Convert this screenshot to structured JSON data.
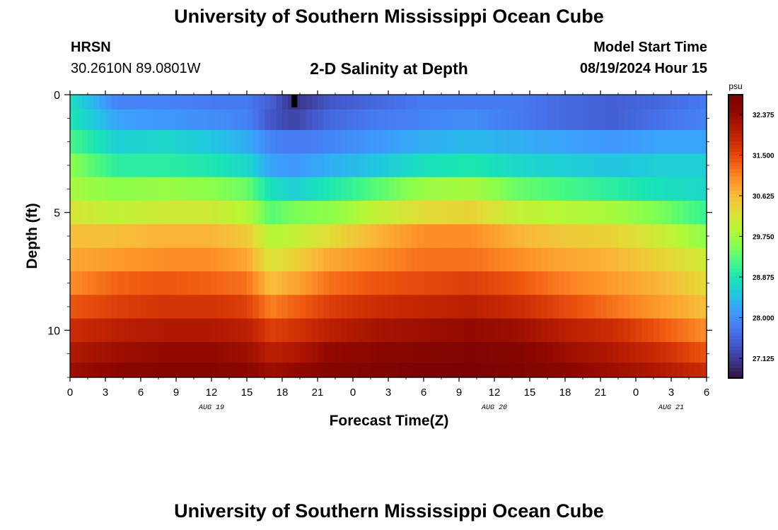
{
  "header": {
    "title": "University of Southern Mississippi Ocean Cube",
    "station": "HRSN",
    "coords": "30.2610N  89.0801W",
    "subtitle": "2-D Salinity at Depth",
    "start_label": "Model Start Time",
    "start_value": "08/19/2024 Hour 15"
  },
  "footer": {
    "title": "University of Southern Mississippi Ocean Cube"
  },
  "chart_data": {
    "type": "heatmap",
    "title": "2-D Salinity at Depth",
    "xlabel": "Forecast Time(Z)",
    "ylabel": "Depth (ft)",
    "x_tick_labels": [
      "0",
      "3",
      "6",
      "9",
      "12",
      "15",
      "18",
      "21",
      "0",
      "3",
      "6",
      "9",
      "12",
      "15",
      "18",
      "21",
      "0",
      "3",
      "6"
    ],
    "x_range_hours": [
      0,
      54
    ],
    "date_labels": [
      {
        "text": "AUG 19",
        "hour": 12
      },
      {
        "text": "AUG 20",
        "hour": 36
      },
      {
        "text": "AUG 21",
        "hour": 51
      }
    ],
    "y_tick_labels": [
      "0",
      "5",
      "10"
    ],
    "y_range": [
      0,
      12
    ],
    "colorbar": {
      "unit": "psu",
      "min": 26.7,
      "max": 32.8,
      "tick_labels": [
        "32.375",
        "31.500",
        "30.625",
        "29.750",
        "28.875",
        "28.000",
        "27.125"
      ],
      "tick_values": [
        32.375,
        31.5,
        30.625,
        29.75,
        28.875,
        28.0,
        27.125
      ]
    },
    "depth_levels_ft": [
      0.25,
      1.0,
      2.0,
      3.0,
      4.0,
      5.0,
      6.0,
      7.0,
      8.0,
      9.0,
      10.0,
      11.0,
      11.75
    ],
    "salinity_profiles_psu": {
      "hours": [
        0,
        4,
        8,
        12,
        15,
        17,
        19,
        22,
        26,
        30,
        34,
        38,
        42,
        46,
        50,
        54
      ],
      "by_depth": [
        [
          28.8,
          27.9,
          27.9,
          27.8,
          27.8,
          27.5,
          27.0,
          27.4,
          27.6,
          27.8,
          27.8,
          27.8,
          27.6,
          27.5,
          27.6,
          27.8
        ],
        [
          28.9,
          28.2,
          28.1,
          28.0,
          27.9,
          27.4,
          27.2,
          27.6,
          27.8,
          27.9,
          28.0,
          27.8,
          27.6,
          27.5,
          27.7,
          27.9
        ],
        [
          29.2,
          28.6,
          28.7,
          28.5,
          28.3,
          27.9,
          27.8,
          27.9,
          28.1,
          28.3,
          28.4,
          28.3,
          28.2,
          28.1,
          28.2,
          28.2
        ],
        [
          29.6,
          29.0,
          29.0,
          28.9,
          28.7,
          28.2,
          28.1,
          28.3,
          28.5,
          28.8,
          28.9,
          28.7,
          28.6,
          28.5,
          28.6,
          28.6
        ],
        [
          29.8,
          29.6,
          29.7,
          29.6,
          29.4,
          28.8,
          28.6,
          28.9,
          29.3,
          29.7,
          29.8,
          29.4,
          29.2,
          29.0,
          28.8,
          28.7
        ],
        [
          30.2,
          30.0,
          30.1,
          30.1,
          29.9,
          29.3,
          29.5,
          29.6,
          30.0,
          30.3,
          30.4,
          30.0,
          29.9,
          29.8,
          29.5,
          29.1
        ],
        [
          30.6,
          30.6,
          30.7,
          30.7,
          30.5,
          29.9,
          30.0,
          30.3,
          30.7,
          31.0,
          31.0,
          30.7,
          30.5,
          30.4,
          30.1,
          29.6
        ],
        [
          30.8,
          30.9,
          31.0,
          31.0,
          30.8,
          30.2,
          30.4,
          30.8,
          31.0,
          31.2,
          31.2,
          31.0,
          30.8,
          30.7,
          30.4,
          30.1
        ],
        [
          31.0,
          31.3,
          31.4,
          31.3,
          31.2,
          30.6,
          30.8,
          31.2,
          31.4,
          31.5,
          31.6,
          31.4,
          31.1,
          30.9,
          30.7,
          30.3
        ],
        [
          31.4,
          31.6,
          31.7,
          31.7,
          31.6,
          31.1,
          31.3,
          31.6,
          31.8,
          31.9,
          32.0,
          31.8,
          31.5,
          31.2,
          30.9,
          30.6
        ],
        [
          31.8,
          32.0,
          32.1,
          32.1,
          32.0,
          31.6,
          31.7,
          32.0,
          32.2,
          32.3,
          32.4,
          32.3,
          32.0,
          31.8,
          31.4,
          31.0
        ],
        [
          32.1,
          32.3,
          32.4,
          32.4,
          32.3,
          32.0,
          32.1,
          32.4,
          32.5,
          32.6,
          32.7,
          32.6,
          32.3,
          32.1,
          31.8,
          31.4
        ],
        [
          32.3,
          32.5,
          32.6,
          32.6,
          32.5,
          32.3,
          32.4,
          32.6,
          32.7,
          32.8,
          32.8,
          32.7,
          32.5,
          32.3,
          32.1,
          31.8
        ]
      ]
    },
    "grid": false,
    "legend": "colorbar-right"
  },
  "colors": {
    "colormap": [
      "#30123b",
      "#3d358b",
      "#4458cb",
      "#4778f0",
      "#3e9bfe",
      "#22c5e2",
      "#1ae4b6",
      "#46f884",
      "#88ff4e",
      "#b9f635",
      "#e1dd37",
      "#f9ba38",
      "#fd8d27",
      "#ef5911",
      "#d23105",
      "#b21a01",
      "#8e0800",
      "#7a0403"
    ]
  }
}
